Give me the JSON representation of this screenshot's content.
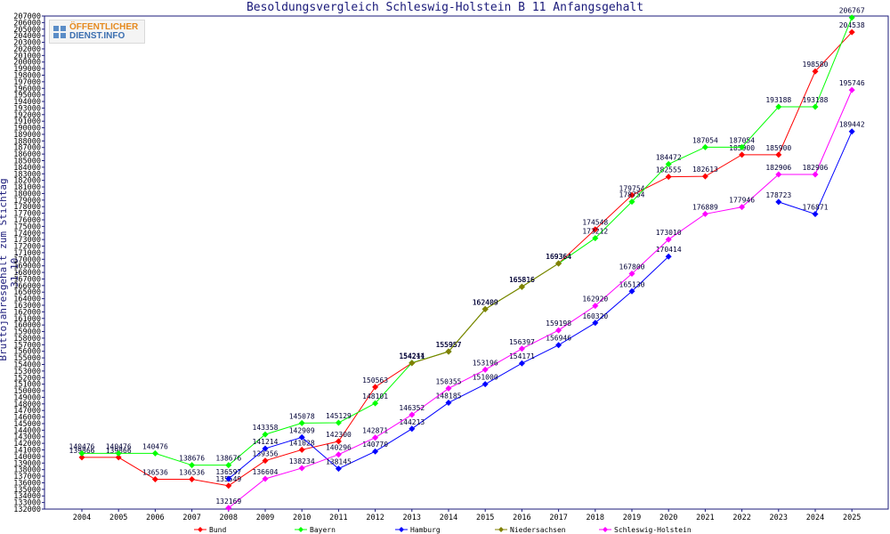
{
  "logo": {
    "line1": "ÖFFENTLICHER",
    "line2": "DIENST.INFO"
  },
  "chart_data": {
    "type": "line",
    "title": "Besoldungsvergleich Schleswig-Holstein B 11 Anfangsgehalt",
    "xlabel": "",
    "ylabel": "Bruttojahresgehalt zum Stichtag 31.10.",
    "ylim": [
      132000,
      207000
    ],
    "ytick_step": 1000,
    "grid": false,
    "legend_position": "bottom",
    "categories": [
      "2004",
      "2005",
      "2006",
      "2007",
      "2008",
      "2009",
      "2010",
      "2011",
      "2012",
      "2013",
      "2014",
      "2015",
      "2016",
      "2017",
      "2018",
      "2019",
      "2020",
      "2021",
      "2022",
      "2023",
      "2024",
      "2025"
    ],
    "series": [
      {
        "name": "Bund",
        "color": "#ff0000",
        "values": [
          139866,
          139866,
          136536,
          136536,
          135549,
          139356,
          141028,
          142300,
          150563,
          154211,
          155957,
          162409,
          165816,
          169364,
          174548,
          179754,
          182555,
          182613,
          185900,
          185900,
          198580,
          204538
        ]
      },
      {
        "name": "Bayern",
        "color": "#00ff00",
        "values": [
          140476,
          140476,
          140476,
          138676,
          138676,
          143358,
          145078,
          145129,
          148101,
          154244,
          155957,
          162409,
          165816,
          169364,
          173212,
          178754,
          184472,
          187054,
          187054,
          193188,
          193188,
          206767
        ]
      },
      {
        "name": "Hamburg",
        "color": "#0000ff",
        "values": [
          null,
          null,
          null,
          null,
          136597,
          141214,
          142909,
          138145,
          140770,
          144213,
          148185,
          151000,
          154171,
          156946,
          160320,
          165130,
          170414,
          null,
          null,
          178723,
          176871,
          189442
        ]
      },
      {
        "name": "Niedersachsen",
        "color": "#808000",
        "values": [
          null,
          null,
          null,
          null,
          null,
          null,
          null,
          null,
          null,
          154211,
          155957,
          162409,
          165816,
          169364,
          null,
          null,
          null,
          null,
          null,
          null,
          null,
          null
        ]
      },
      {
        "name": "Schleswig-Holstein",
        "color": "#ff00ff",
        "values": [
          null,
          null,
          null,
          null,
          132169,
          136604,
          138234,
          140296,
          142871,
          146352,
          150355,
          153196,
          156397,
          159198,
          162920,
          167800,
          173010,
          176889,
          177946,
          182906,
          182906,
          195746
        ]
      }
    ]
  }
}
